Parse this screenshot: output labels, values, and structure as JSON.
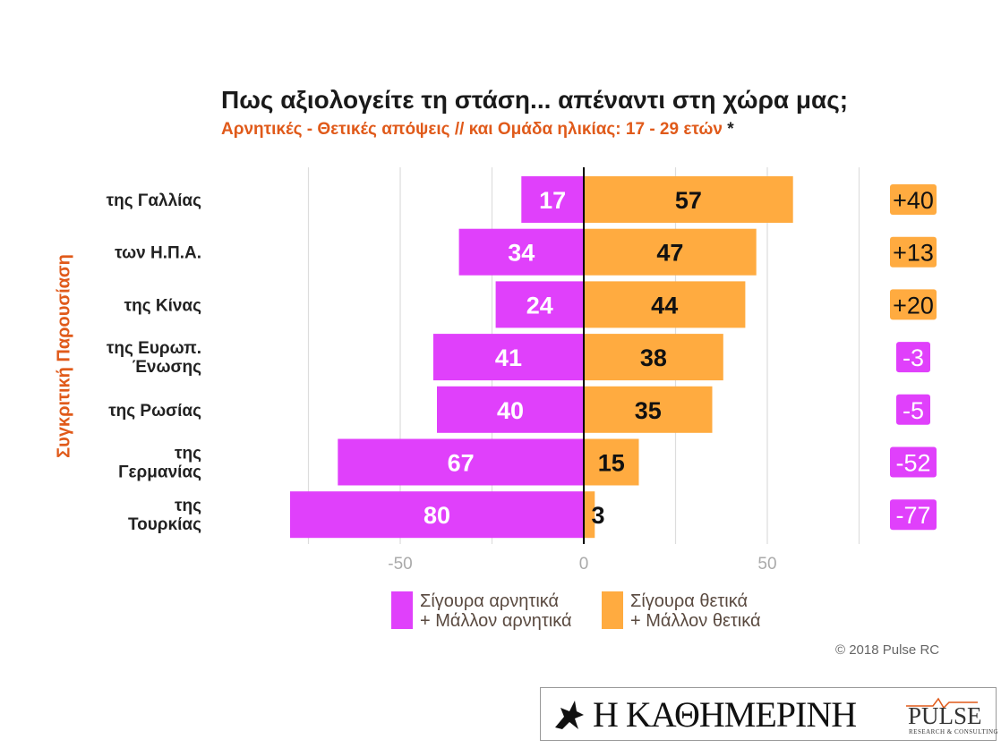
{
  "chart_data": {
    "type": "bar",
    "title": "Πως αξιολογείτε τη στάση... απέναντι στη χώρα μας;",
    "subtitle": "Αρνητικές - Θετικές απόψεις // και Ομάδα ηλικίας: 17 - 29 ετών",
    "subtitle_marker": "*",
    "ylabel": "Συγκριτική Παρουσίαση",
    "categories": [
      [
        "της Γαλλίας"
      ],
      [
        "των Η.Π.Α."
      ],
      [
        "της Κίνας"
      ],
      [
        "της Ευρωπ.",
        "Ένωσης"
      ],
      [
        "της Ρωσίας"
      ],
      [
        "της",
        "Γερμανίας"
      ],
      [
        "της",
        "Τουρκίας"
      ]
    ],
    "series": [
      {
        "name": "Σίγουρα αρνητικά + Μάλλον αρνητικά",
        "values": [
          17,
          34,
          24,
          41,
          40,
          67,
          80
        ],
        "color": "#e040fb"
      },
      {
        "name": "Σίγουρα θετικά + Μάλλον θετικά",
        "values": [
          57,
          47,
          44,
          38,
          35,
          15,
          3
        ],
        "color": "#ffab40"
      }
    ],
    "net": [
      "+40",
      "+13",
      "+20",
      "-3",
      "-5",
      "-52",
      "-77"
    ],
    "xticks": [
      "-50",
      "0",
      "50"
    ],
    "xlim": [
      -80,
      75
    ],
    "grid": true,
    "legend_position": "bottom",
    "legend": [
      [
        "Σίγουρα αρνητικά",
        "+ Μάλλον αρνητικά"
      ],
      [
        "Σίγουρα θετικά",
        "+ Μάλλον θετικά"
      ]
    ]
  },
  "copyright": "© 2018 Pulse RC",
  "footer": {
    "newspaper": "Η ΚΑΘΗΜΕΡΙΝΗ",
    "pulse": "PULSE",
    "pulse_sub": "RESEARCH & CONSULTING"
  },
  "colors": {
    "negative": "#e040fb",
    "positive": "#ffab40",
    "accent": "#e05a1a"
  }
}
